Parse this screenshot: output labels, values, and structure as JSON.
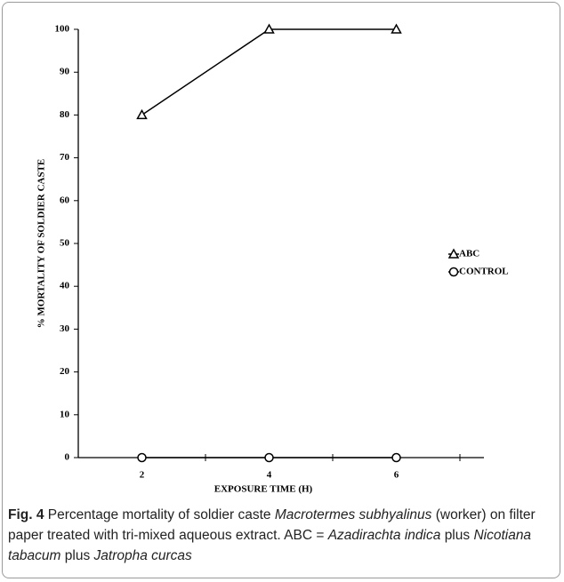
{
  "chart_data": {
    "type": "line",
    "categories": [
      "2",
      "4",
      "6"
    ],
    "series": [
      {
        "name": "ABC",
        "color": "#000000",
        "marker": "triangle",
        "values": [
          80,
          100,
          100
        ]
      },
      {
        "name": "CONTROL",
        "color": "#000000",
        "marker": "circle",
        "values": [
          0,
          0,
          0
        ]
      }
    ],
    "ylim": [
      0,
      100
    ],
    "yticks": [
      0,
      10,
      20,
      30,
      40,
      50,
      60,
      70,
      80,
      90,
      100
    ],
    "x_label": "EXPOSURE TIME (H)",
    "y_label": "% MORTALITY OF SOLDIER CASTE",
    "legend": "right",
    "grid": false
  },
  "caption": {
    "label": "Fig. 4",
    "parts": [
      {
        "text": "Percentage mortality of soldier caste",
        "italic": false
      },
      {
        "text": "Macrotermes subhyalinus",
        "italic": true
      },
      {
        "text": "(worker) on filter paper treated with tri-mixed aqueous extract. ABC =",
        "italic": false
      },
      {
        "text": "Azadirachta indica",
        "italic": true
      },
      {
        "text": "plus",
        "italic": false
      },
      {
        "text": "Nicotiana tabacum",
        "italic": true
      },
      {
        "text": "plus",
        "italic": false
      },
      {
        "text": "Jatropha curcas",
        "italic": true
      }
    ]
  }
}
